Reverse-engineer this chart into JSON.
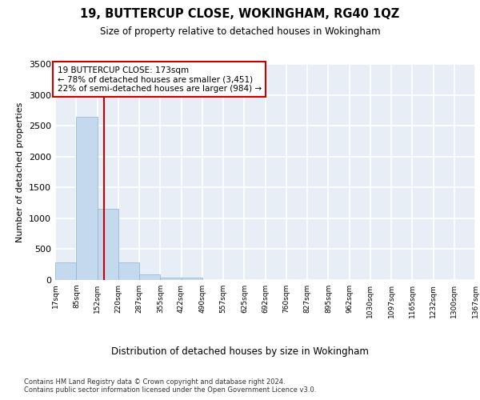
{
  "title": "19, BUTTERCUP CLOSE, WOKINGHAM, RG40 1QZ",
  "subtitle": "Size of property relative to detached houses in Wokingham",
  "xlabel": "Distribution of detached houses by size in Wokingham",
  "ylabel": "Number of detached properties",
  "bar_color": "#c5d9ee",
  "bar_edge_color": "#8ab4d4",
  "background_color": "#e8eef6",
  "grid_color": "#ffffff",
  "vline_value": 173,
  "vline_color": "#cc0000",
  "annotation_text": "19 BUTTERCUP CLOSE: 173sqm\n← 78% of detached houses are smaller (3,451)\n22% of semi-detached houses are larger (984) →",
  "annotation_box_color": "#ffffff",
  "annotation_box_edge": "#cc0000",
  "bin_edges": [
    17,
    85,
    152,
    220,
    287,
    355,
    422,
    490,
    557,
    625,
    692,
    760,
    827,
    895,
    962,
    1030,
    1097,
    1165,
    1232,
    1300,
    1367
  ],
  "bar_heights": [
    280,
    2650,
    1160,
    290,
    90,
    45,
    35,
    0,
    0,
    0,
    0,
    0,
    0,
    0,
    0,
    0,
    0,
    0,
    0,
    0
  ],
  "ylim": [
    0,
    3500
  ],
  "yticks": [
    0,
    500,
    1000,
    1500,
    2000,
    2500,
    3000,
    3500
  ],
  "footer_text": "Contains HM Land Registry data © Crown copyright and database right 2024.\nContains public sector information licensed under the Open Government Licence v3.0.",
  "tick_labels": [
    "17sqm",
    "85sqm",
    "152sqm",
    "220sqm",
    "287sqm",
    "355sqm",
    "422sqm",
    "490sqm",
    "557sqm",
    "625sqm",
    "692sqm",
    "760sqm",
    "827sqm",
    "895sqm",
    "962sqm",
    "1030sqm",
    "1097sqm",
    "1165sqm",
    "1232sqm",
    "1300sqm",
    "1367sqm"
  ]
}
